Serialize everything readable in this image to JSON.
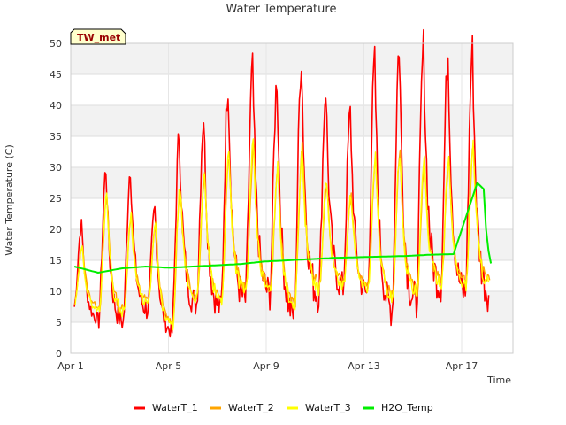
{
  "chart_data": {
    "type": "line",
    "title": "Water Temperature",
    "xlabel": "Time",
    "ylabel": "Water Temperature (C)",
    "badge": "TW_met",
    "ylim": [
      0,
      50
    ],
    "yticks": [
      0,
      5,
      10,
      15,
      20,
      25,
      30,
      35,
      40,
      45,
      50
    ],
    "xlim": [
      0,
      18.1
    ],
    "xticks": [
      {
        "value": 0,
        "label": "Apr 1"
      },
      {
        "value": 4,
        "label": "Apr 5"
      },
      {
        "value": 8,
        "label": "Apr 9"
      },
      {
        "value": 12,
        "label": "Apr 13"
      },
      {
        "value": 16,
        "label": "Apr 17"
      }
    ],
    "grid": true,
    "legend_position": "bottom",
    "x_unit": "days since Apr 1",
    "daily": {
      "day": [
        0,
        1,
        2,
        3,
        4,
        5,
        6,
        7,
        8,
        9,
        10,
        11,
        12,
        13,
        14,
        15,
        16,
        17
      ],
      "WaterT_1_max": [
        20.8,
        29.8,
        30.0,
        23.3,
        35.1,
        38.2,
        43.6,
        46.0,
        44.1,
        47.8,
        42.6,
        38.9,
        47.0,
        49.8,
        49.5,
        48.6,
        49.0
      ],
      "WaterT_1_min": [
        7.5,
        5.5,
        5.0,
        7.0,
        3.5,
        8.0,
        7.0,
        8.5,
        9.5,
        6.0,
        9.5,
        10.5,
        9.5,
        7.0,
        8.0,
        11.0,
        9.5
      ],
      "WaterT_2_max": [
        17.5,
        25.5,
        22.5,
        21.0,
        26.5,
        29.0,
        32.0,
        33.0,
        29.5,
        33.0,
        27.5,
        25.5,
        31.0,
        32.0,
        31.0,
        31.0,
        33.5
      ],
      "WaterT_2_min": [
        8.5,
        7.5,
        7.0,
        8.5,
        5.0,
        9.5,
        9.0,
        10.5,
        10.5,
        8.5,
        11.0,
        11.5,
        11.0,
        9.5,
        10.0,
        12.0,
        11.5
      ],
      "WaterT_3_max": [
        17.0,
        26.0,
        22.5,
        20.5,
        26.5,
        29.0,
        32.5,
        33.5,
        30.0,
        33.0,
        28.0,
        25.5,
        31.5,
        32.5,
        31.0,
        31.5,
        34.0
      ],
      "WaterT_3_min": [
        8.0,
        7.0,
        6.5,
        8.0,
        4.5,
        9.0,
        8.5,
        10.0,
        10.0,
        8.0,
        10.5,
        11.0,
        10.5,
        9.0,
        9.5,
        11.5,
        11.0
      ],
      "H2O_Temp": [
        14.0,
        13.0,
        13.7,
        14.0,
        13.8,
        14.0,
        14.2,
        14.4,
        14.8,
        15.0,
        15.2,
        15.4,
        15.5,
        15.6,
        15.7,
        15.9,
        16.0,
        27.5
      ]
    },
    "series": [
      {
        "name": "WaterT_1",
        "color": "#ff0000"
      },
      {
        "name": "WaterT_2",
        "color": "#ffa500"
      },
      {
        "name": "WaterT_3",
        "color": "#ffff00"
      },
      {
        "name": "H2O_Temp",
        "color": "#00ee00"
      }
    ]
  }
}
